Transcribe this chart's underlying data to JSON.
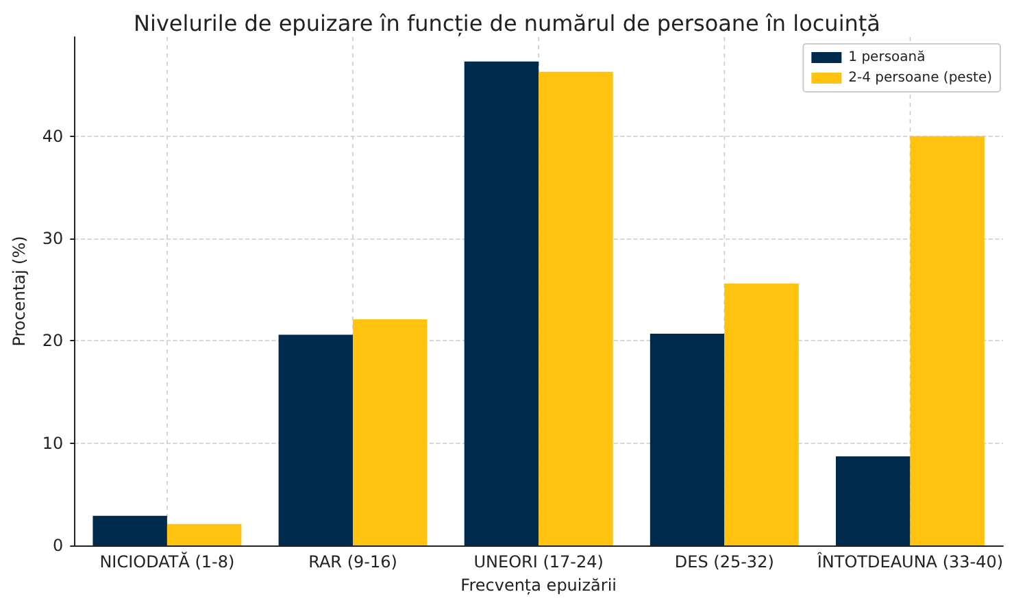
{
  "chart_data": {
    "type": "bar",
    "title": "Nivelurile de epuizare în funcție de numărul de persoane în locuință",
    "xlabel": "Frecvența epuizării",
    "ylabel": "Procentaj (%)",
    "categories": [
      "NICIODATĂ (1-8)",
      "RAR (9-16)",
      "UNEORI (17-24)",
      "DES (25-32)",
      "ÎNTOTDEAUNA (33-40)"
    ],
    "series": [
      {
        "name": "1 persoană",
        "color": "#002b4c",
        "values": [
          2.9,
          20.6,
          47.3,
          20.7,
          8.7
        ]
      },
      {
        "name": "2-4 persoane (peste)",
        "color": "#ffc20e",
        "values": [
          2.1,
          22.1,
          46.3,
          25.6,
          40.0
        ]
      }
    ],
    "ylim": [
      0,
      49.7
    ],
    "yticks": [
      0,
      10,
      20,
      30,
      40
    ],
    "grid": true,
    "legend": "top right"
  }
}
